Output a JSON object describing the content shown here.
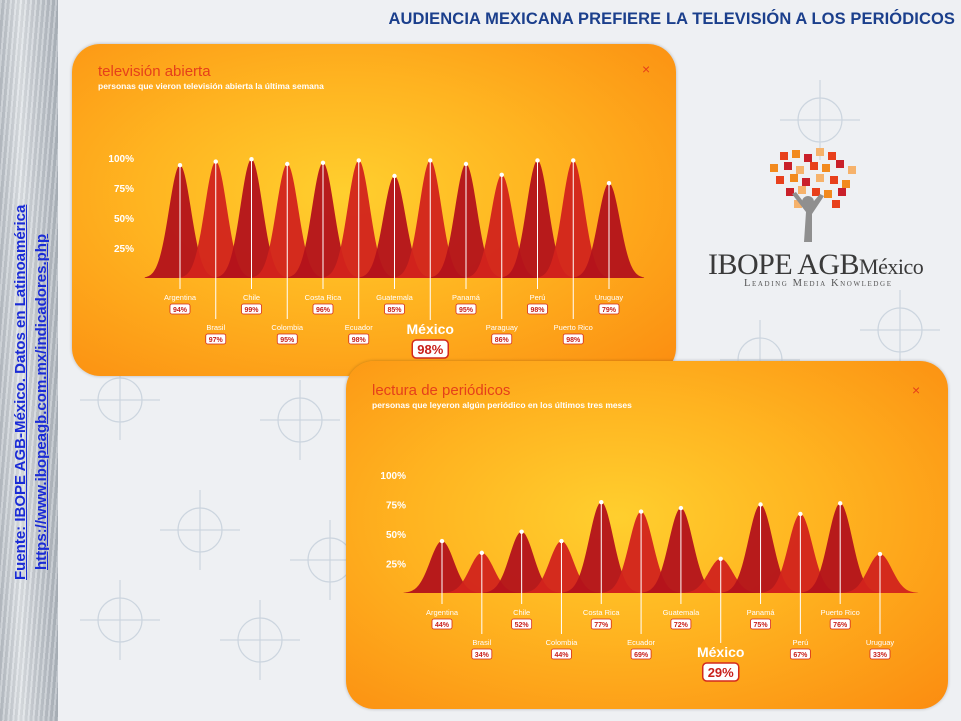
{
  "page_title": "AUDIENCIA MEXICANA PREFIERE LA TELEVISIÓN A LOS PERIÓDICOS",
  "source_line1": "Fuente: IBOPE AGB-México. Datos en Latinoamérica",
  "source_line2": "https://www.ibopeagb.com.mx/indicadores.php",
  "logo": {
    "word1": "IBOPE",
    "word2": "AGB",
    "word3": "México",
    "tagline": "Leading Media Knowledge",
    "square_colors": [
      "#e8401c",
      "#f28a1e",
      "#c9202a",
      "#f6b26b"
    ],
    "figure_color": "#8f8f8f"
  },
  "colors": {
    "bar_dark": "#b3121b",
    "bar_light": "#d2231c",
    "panel_title": "#e5401a",
    "panel_subtitle": "#ffffff",
    "badge_border": "#d42a1c",
    "title_color": "#1b3f8c",
    "source_color": "#1a2bd6"
  },
  "chart_data": [
    {
      "type": "area",
      "title": "televisión abierta",
      "subtitle": "personas que vieron televisión abierta la última semana",
      "close_label": "×",
      "ytick_labels": [
        "100%",
        "75%",
        "50%",
        "25%"
      ],
      "yticks": [
        100,
        75,
        50,
        25
      ],
      "ylim": [
        0,
        100
      ],
      "categories": [
        "Argentina",
        "Brasil",
        "Chile",
        "Colombia",
        "Costa Rica",
        "Ecuador",
        "Guatemala",
        "México",
        "Panamá",
        "Paraguay",
        "Perú",
        "Puerto Rico",
        "Uruguay"
      ],
      "values": [
        94,
        97,
        99,
        95,
        96,
        98,
        85,
        98,
        95,
        86,
        98,
        98,
        79
      ],
      "value_labels": [
        "94%",
        "97%",
        "99%",
        "95%",
        "96%",
        "98%",
        "85%",
        "98%",
        "95%",
        "86%",
        "98%",
        "98%",
        "79%"
      ],
      "highlight": "México"
    },
    {
      "type": "area",
      "title": "lectura de periódicos",
      "subtitle": "personas que leyeron algún periódico en los últimos tres meses",
      "close_label": "×",
      "ytick_labels": [
        "100%",
        "75%",
        "50%",
        "25%"
      ],
      "yticks": [
        100,
        75,
        50,
        25
      ],
      "ylim": [
        0,
        100
      ],
      "categories": [
        "Argentina",
        "Brasil",
        "Chile",
        "Colombia",
        "Costa Rica",
        "Ecuador",
        "Guatemala",
        "México",
        "Panamá",
        "Perú",
        "Puerto Rico",
        "Uruguay"
      ],
      "values": [
        44,
        34,
        52,
        44,
        77,
        69,
        72,
        29,
        75,
        67,
        76,
        33
      ],
      "value_labels": [
        "44%",
        "34%",
        "52%",
        "44%",
        "77%",
        "69%",
        "72%",
        "29%",
        "75%",
        "67%",
        "76%",
        "33%"
      ],
      "highlight": "México"
    }
  ]
}
